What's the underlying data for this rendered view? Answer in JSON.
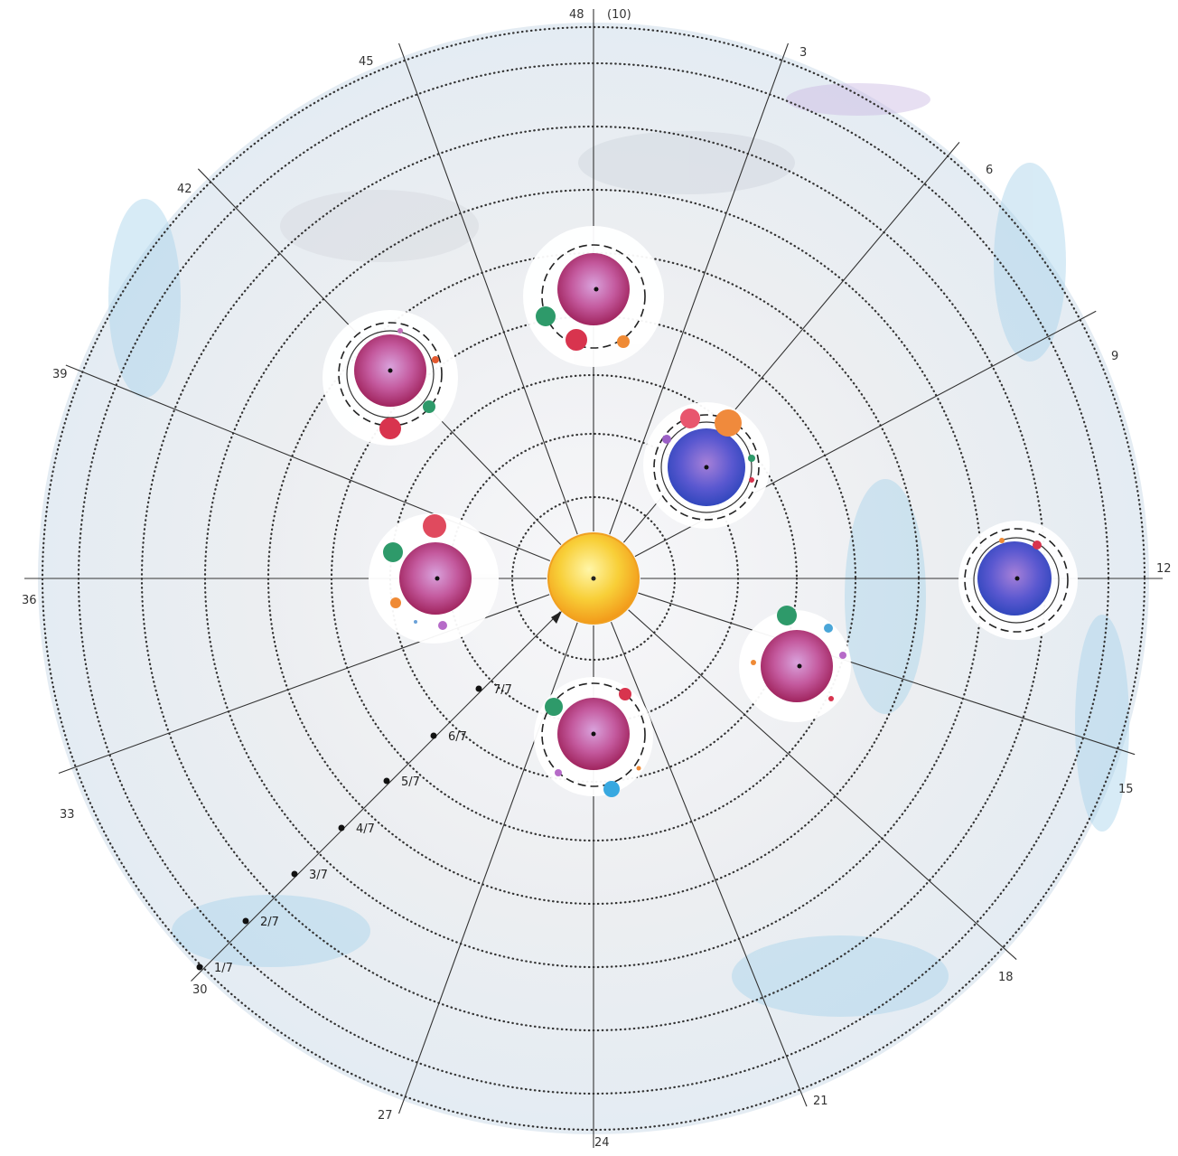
{
  "spoke_labels": [
    "48",
    "(10)",
    "3",
    "6",
    "9",
    "12",
    "15",
    "18",
    "21",
    "24",
    "27",
    "30",
    "33",
    "36",
    "39",
    "42",
    "45"
  ],
  "radius_labels": [
    "1/7",
    "2/7",
    "3/7",
    "4/7",
    "5/7",
    "6/7",
    "7/7"
  ],
  "colors": {
    "sun": "#f6c12a",
    "sun_rim": "#f39a1b",
    "magenta_planet": "#b2306e",
    "blue_planet": "#3f54c8",
    "wash": "#9bcbe6",
    "ink": "#333333"
  },
  "bodies": [
    {
      "type": "sun"
    },
    {
      "type": "magenta-planet-system"
    },
    {
      "type": "blue-planet-system"
    }
  ]
}
